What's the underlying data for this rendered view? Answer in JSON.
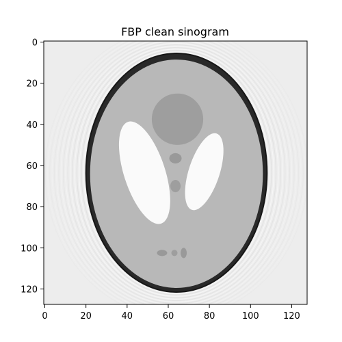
{
  "chart_data": {
    "type": "heatmap",
    "title": "FBP clean sinogram",
    "xlabel": "",
    "ylabel": "",
    "image_size": [
      128,
      128
    ],
    "xlim": [
      -0.5,
      127.5
    ],
    "ylim": [
      127.5,
      -0.5
    ],
    "colormap": "gray",
    "x_ticks": [
      0,
      20,
      40,
      60,
      80,
      100,
      120
    ],
    "y_ticks": [
      0,
      20,
      40,
      60,
      80,
      100,
      120
    ],
    "x_tick_labels": [
      "0",
      "20",
      "40",
      "60",
      "80",
      "100",
      "120"
    ],
    "y_tick_labels": [
      "0",
      "20",
      "40",
      "60",
      "80",
      "100",
      "120"
    ],
    "grid": false,
    "legend": "none",
    "background_intensity": 0.93,
    "phantom_ellipses": [
      {
        "feature": "outer rim",
        "center": [
          64,
          63.5
        ],
        "semi_axes": [
          44,
          58
        ],
        "intensity": 0.16
      },
      {
        "feature": "brain",
        "center": [
          64,
          64
        ],
        "semi_axes": [
          42,
          55.5
        ],
        "intensity": 0.72
      },
      {
        "feature": "upper central region",
        "center": [
          64.5,
          37.5
        ],
        "semi_axes": [
          12.5,
          12.5
        ],
        "intensity": 0.62
      },
      {
        "feature": "left ventricle",
        "center": [
          48.5,
          63.5
        ],
        "semi_axes": [
          10,
          26
        ],
        "angle_deg": -18,
        "intensity": 0.98
      },
      {
        "feature": "right ventricle",
        "center": [
          77.5,
          63
        ],
        "semi_axes": [
          7.5,
          19.5
        ],
        "angle_deg": 18,
        "intensity": 0.98
      },
      {
        "feature": "upper spot",
        "center": [
          63.5,
          56.5
        ],
        "semi_axes": [
          3,
          2.5
        ],
        "intensity": 0.6
      },
      {
        "feature": "middle spot",
        "center": [
          63.5,
          70
        ],
        "semi_axes": [
          2.5,
          3
        ],
        "intensity": 0.62
      },
      {
        "feature": "lower spot 1",
        "center": [
          57,
          102.5
        ],
        "semi_axes": [
          2.5,
          1.5
        ],
        "intensity": 0.6
      },
      {
        "feature": "lower spot 2",
        "center": [
          63,
          102.5
        ],
        "semi_axes": [
          1.5,
          1.5
        ],
        "intensity": 0.62
      },
      {
        "feature": "lower spot 3",
        "center": [
          67.5,
          102.5
        ],
        "semi_axes": [
          1.5,
          2.5
        ],
        "intensity": 0.6
      }
    ]
  }
}
